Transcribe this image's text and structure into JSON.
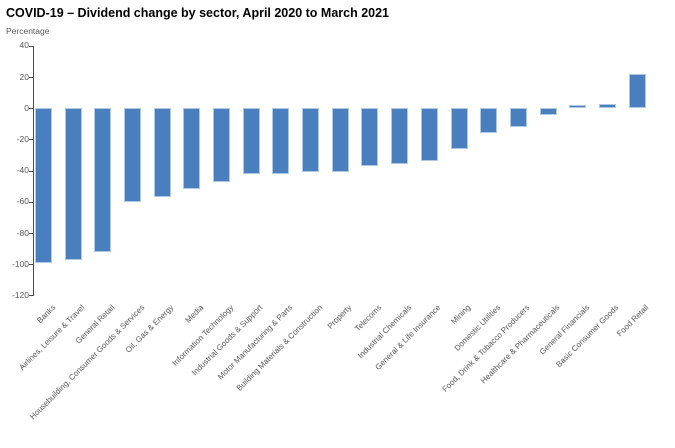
{
  "header": {
    "title": "COVID-19 – Dividend change by sector, April 2020 to March 2021"
  },
  "chart_data": {
    "type": "bar",
    "title": "COVID-19 – Dividend change by sector, April 2020 to March 2021",
    "ylabel": "Percentage",
    "xlabel": "",
    "ylim": [
      -120,
      40
    ],
    "yticks": [
      40,
      20,
      0,
      -20,
      -40,
      -60,
      -80,
      -100,
      -120
    ],
    "grid": false,
    "legend": null,
    "categories": [
      "Banks",
      "Airlines, Leisure & Travel",
      "General Retail",
      "Housebuilding, Consumer Goods & Services",
      "Oil, Gas & Energy",
      "Media",
      "Information Technology",
      "Industrial Goods & Support",
      "Motor Manufacturing & Parts",
      "Building Materials & Construction",
      "Property",
      "Telecoms",
      "Industrial Chemicals",
      "General & Life Insurance",
      "Mining",
      "Domestic Utilities",
      "Food, Drink & Tobacco Producers",
      "Healthcare & Pharmaceuticals",
      "General Financials",
      "Basic Consumer Goods",
      "Food Retail"
    ],
    "values": [
      -99,
      -97,
      -92,
      -60,
      -57,
      -52,
      -47,
      -42,
      -42,
      -41,
      -41,
      -37,
      -36,
      -34,
      -26,
      -16,
      -12,
      -4,
      2,
      3,
      22
    ],
    "colors": {
      "bar_fill": "#4a7fbe",
      "bar_border": "#aec8e6",
      "axis": "#4d4d4d",
      "text": "#595959",
      "title_text": "#000000",
      "background": "#ffffff"
    }
  }
}
